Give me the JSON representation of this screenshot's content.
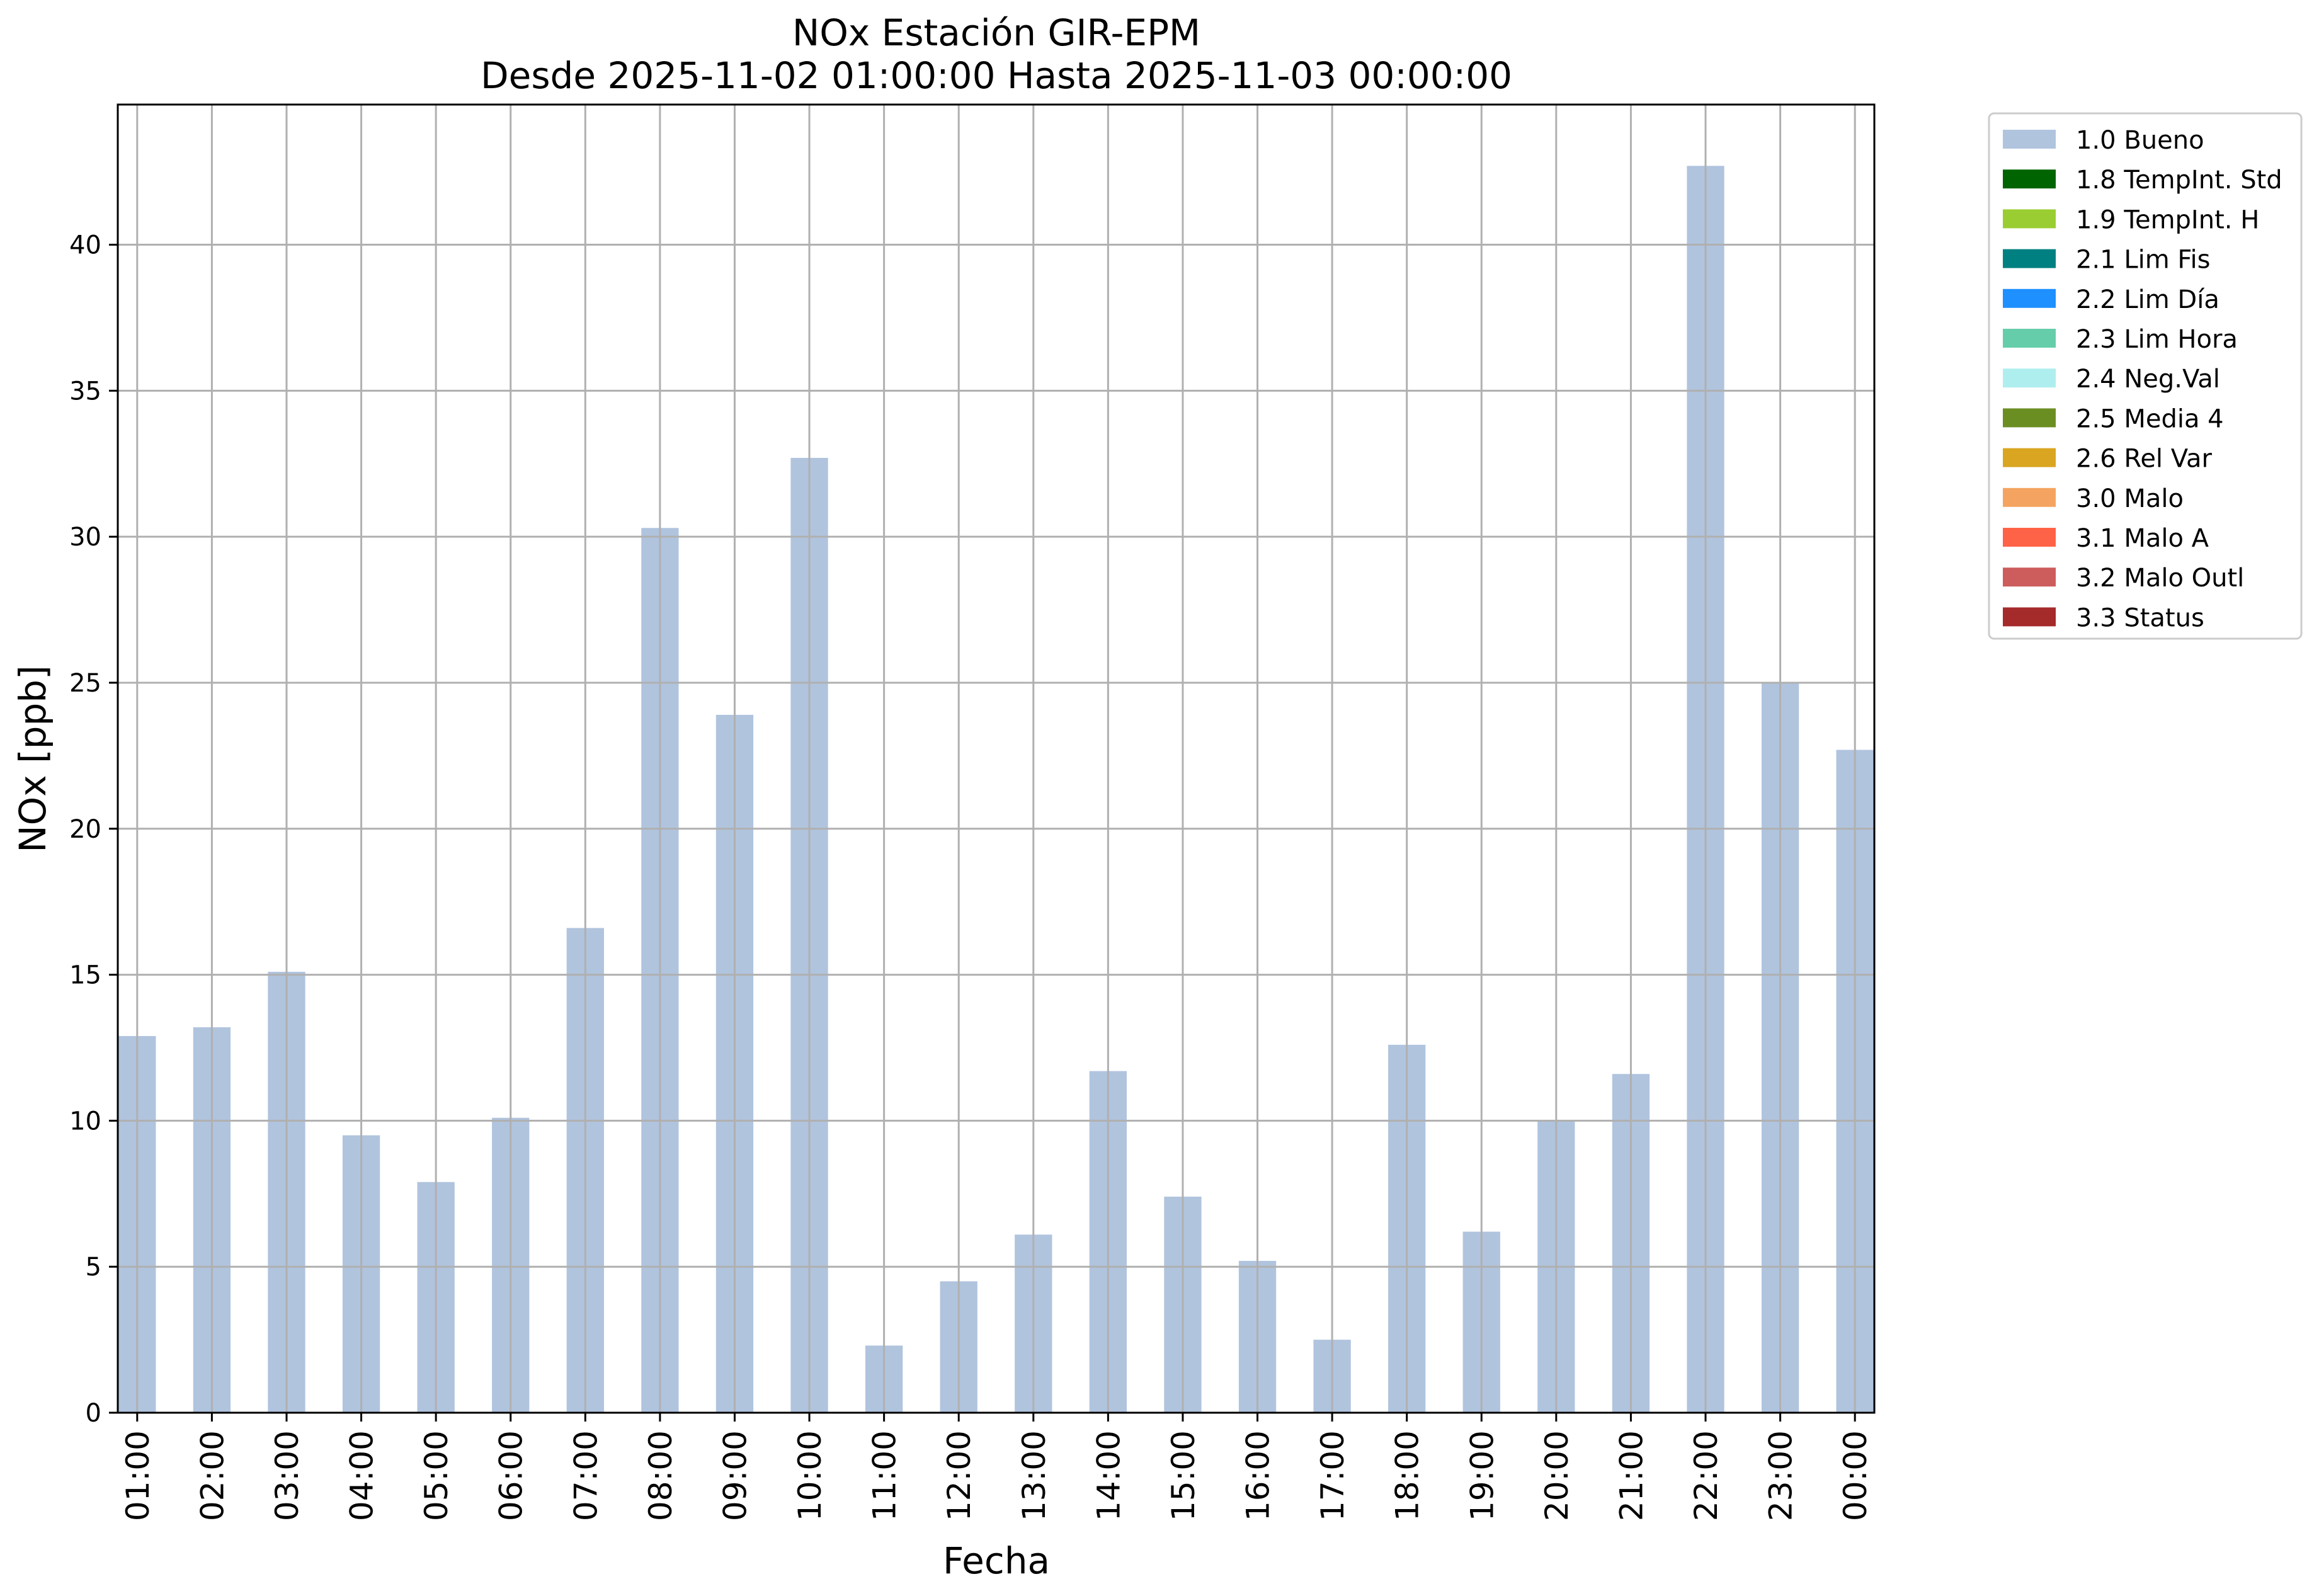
{
  "chart_data": {
    "type": "bar",
    "title_line1": "NOx Estación GIR-EPM",
    "title_line2": "Desde 2025-11-02 01:00:00 Hasta 2025-11-03 00:00:00",
    "xlabel": "Fecha",
    "ylabel": "NOx [ppb]",
    "ylim": [
      0,
      44.8
    ],
    "yticks": [
      0,
      5,
      10,
      15,
      20,
      25,
      30,
      35,
      40
    ],
    "grid": true,
    "legend_position": "outside-top-right",
    "categories": [
      "01:00",
      "02:00",
      "03:00",
      "04:00",
      "05:00",
      "06:00",
      "07:00",
      "08:00",
      "09:00",
      "10:00",
      "11:00",
      "12:00",
      "13:00",
      "14:00",
      "15:00",
      "16:00",
      "17:00",
      "18:00",
      "19:00",
      "20:00",
      "21:00",
      "22:00",
      "23:00",
      "00:00"
    ],
    "series": [
      {
        "name": "1.0 Bueno",
        "color": "#b0c4de",
        "values": [
          12.9,
          13.2,
          15.1,
          9.5,
          7.9,
          10.1,
          16.6,
          30.3,
          23.9,
          32.7,
          2.3,
          4.5,
          6.1,
          11.7,
          7.4,
          5.2,
          2.5,
          12.6,
          6.2,
          10.0,
          11.6,
          42.7,
          25.0,
          22.7
        ]
      }
    ],
    "legend": [
      {
        "label": "1.0 Bueno",
        "color": "#b0c4de"
      },
      {
        "label": "1.8 TempInt. Std",
        "color": "#006400"
      },
      {
        "label": "1.9 TempInt. H",
        "color": "#9acd32"
      },
      {
        "label": "2.1 Lim Fis",
        "color": "#008080"
      },
      {
        "label": "2.2 Lim Día",
        "color": "#1e90ff"
      },
      {
        "label": "2.3 Lim Hora",
        "color": "#66cdaa"
      },
      {
        "label": "2.4 Neg.Val",
        "color": "#afeeee"
      },
      {
        "label": "2.5 Media 4",
        "color": "#6b8e23"
      },
      {
        "label": "2.6 Rel Var",
        "color": "#daa520"
      },
      {
        "label": "3.0 Malo",
        "color": "#f4a460"
      },
      {
        "label": "3.1 Malo A",
        "color": "#ff6347"
      },
      {
        "label": "3.2 Malo Outl",
        "color": "#cd5c5c"
      },
      {
        "label": "3.3 Status",
        "color": "#a52a2a"
      }
    ]
  }
}
